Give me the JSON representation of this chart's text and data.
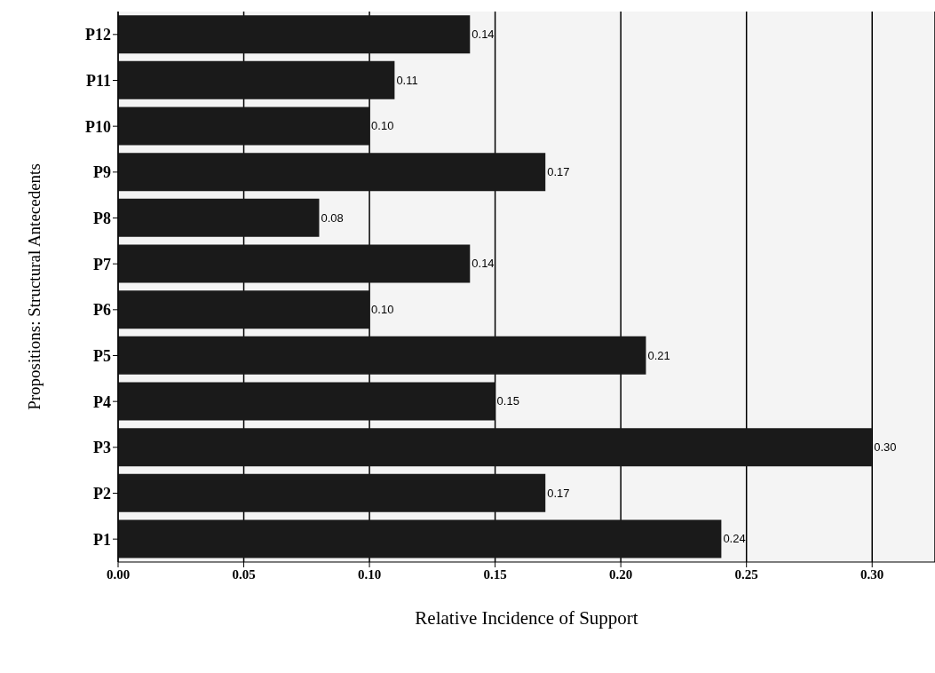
{
  "chart_data": {
    "type": "bar",
    "orientation": "horizontal",
    "xlabel": "Relative Incidence of  Support",
    "ylabel": "Propositions:  Structural Antecedents",
    "categories": [
      "P12",
      "P11",
      "P10",
      "P9",
      "P8",
      "P7",
      "P6",
      "P5",
      "P4",
      "P3",
      "P2",
      "P1"
    ],
    "values": [
      0.14,
      0.11,
      0.1,
      0.17,
      0.08,
      0.14,
      0.1,
      0.21,
      0.15,
      0.3,
      0.17,
      0.24
    ],
    "value_labels": [
      "0.14",
      "0.11",
      "0.10",
      "0.17",
      "0.08",
      "0.14",
      "0.10",
      "0.21",
      "0.15",
      "0.30",
      "0.17",
      "0.24"
    ],
    "color": "#1a1a1a",
    "xlim": [
      0,
      0.325
    ],
    "xticks": [
      {
        "value": 0,
        "label": "0.00"
      },
      {
        "value": 0.05,
        "label": "0.05"
      },
      {
        "value": 0.1,
        "label": "0.10"
      },
      {
        "value": 0.15,
        "label": "0.15"
      },
      {
        "value": 0.2,
        "label": "0.20"
      },
      {
        "value": 0.25,
        "label": "0.25"
      },
      {
        "value": 0.3,
        "label": "0.30"
      }
    ],
    "grid": "x",
    "legend": false
  }
}
